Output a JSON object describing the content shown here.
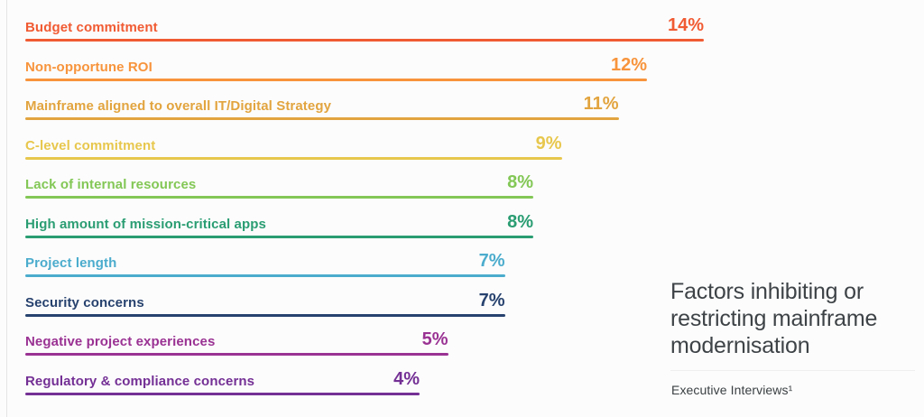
{
  "chart_data": {
    "type": "bar",
    "orientation": "horizontal",
    "title": "Factors inhibiting or restricting mainframe modernisation",
    "source_note": "Executive Interviews¹",
    "unit": "%",
    "xlim": [
      0,
      14
    ],
    "grid": false,
    "legend": false,
    "categories": [
      "Budget commitment",
      "Non-opportune ROI",
      "Mainframe aligned to overall IT/Digital Strategy",
      "C-level commitment",
      "Lack of internal resources",
      "High amount of mission-critical apps",
      "Project length",
      "Security concerns",
      "Negative project experiences",
      "Regulatory & compliance concerns"
    ],
    "values": [
      14,
      12,
      11,
      9,
      8,
      8,
      7,
      7,
      5,
      4
    ],
    "bars": [
      {
        "label": "Budget commitment",
        "value": 14,
        "pct_label": "14%",
        "color": "#F15B33"
      },
      {
        "label": "Non-opportune ROI",
        "value": 12,
        "pct_label": "12%",
        "color": "#F7943C"
      },
      {
        "label": "Mainframe aligned to overall IT/Digital Strategy",
        "value": 11,
        "pct_label": "11%",
        "color": "#E2A43E"
      },
      {
        "label": "C-level commitment",
        "value": 9,
        "pct_label": "9%",
        "color": "#E8C74D"
      },
      {
        "label": "Lack of internal resources",
        "value": 8,
        "pct_label": "8%",
        "color": "#83C856"
      },
      {
        "label": "High amount of mission-critical apps",
        "value": 8,
        "pct_label": "8%",
        "color": "#2A9D73"
      },
      {
        "label": "Project length",
        "value": 7,
        "pct_label": "7%",
        "color": "#4BACCD"
      },
      {
        "label": "Security concerns",
        "value": 7,
        "pct_label": "7%",
        "color": "#27426E"
      },
      {
        "label": "Negative project experiences",
        "value": 5,
        "pct_label": "5%",
        "color": "#9A3293"
      },
      {
        "label": "Regulatory & compliance concerns",
        "value": 4,
        "pct_label": "4%",
        "color": "#743095"
      }
    ]
  }
}
